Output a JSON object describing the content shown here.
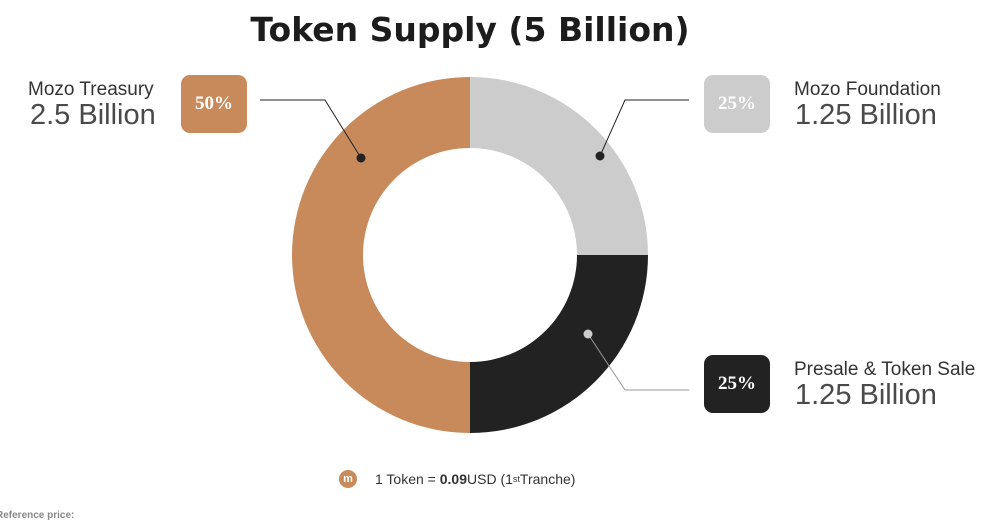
{
  "title": "Token Supply (5 Billion)",
  "chart_data": {
    "type": "pie",
    "title": "Token Supply (5 Billion)",
    "donut": true,
    "slices": [
      {
        "label": "Mozo Foundation",
        "amount": "1.25 Billion",
        "percent_label": "25%",
        "value": 25,
        "color": "#CCCCCC",
        "badge_color": "#CCCCCC",
        "dot_color": "#222222"
      },
      {
        "label": "Presale & Token Sale",
        "amount": "1.25 Billion",
        "percent_label": "25%",
        "value": 25,
        "color": "#222222",
        "badge_color": "#222222",
        "dot_color": "#CCCCCC"
      },
      {
        "label": "Mozo Treasury",
        "amount": "2.5 Billion",
        "percent_label": "50%",
        "value": 50,
        "color": "#C88A5A",
        "badge_color": "#C88A5A",
        "dot_color": "#222222"
      }
    ]
  },
  "footer": {
    "coin_icon": "m",
    "prefix": "1 Token = ",
    "price": "0.09",
    "currency": " USD (1",
    "ordinal": "st",
    "suffix": " Tranche)"
  },
  "reference": "Reference price:"
}
